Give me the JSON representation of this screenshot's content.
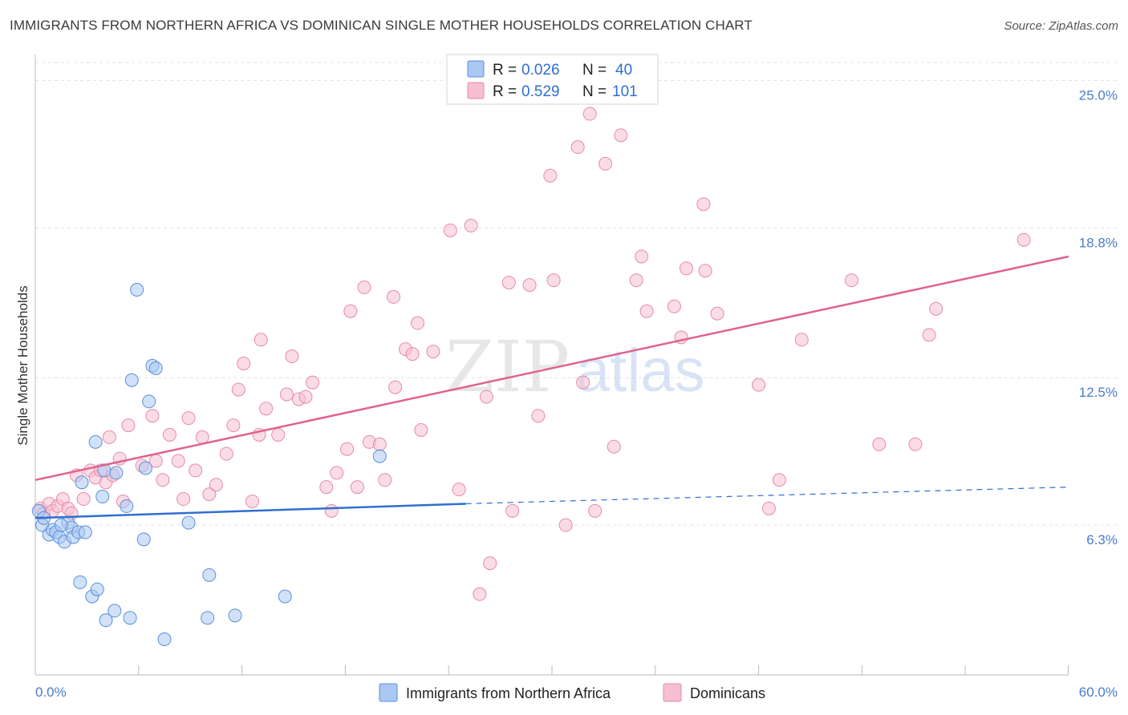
{
  "title": "IMMIGRANTS FROM NORTHERN AFRICA VS DOMINICAN SINGLE MOTHER HOUSEHOLDS CORRELATION CHART",
  "source": "Source: ZipAtlas.com",
  "watermark": {
    "zip": "ZIP",
    "atlas": "atlas"
  },
  "colors": {
    "blue_fill": "#a9c8f2",
    "blue_stroke": "#5b8fd8",
    "blue_line": "#2f6fd0",
    "pink_fill": "#f6bfd2",
    "pink_stroke": "#e88aa8",
    "pink_line": "#e0628d",
    "tick_label": "#4a7cc9"
  },
  "legend": {
    "rows": [
      {
        "r_label": "R = ",
        "r_value": "0.026",
        "n_label": "N = ",
        "n_value": "40",
        "series": "blue"
      },
      {
        "r_label": "R = ",
        "r_value": "0.529",
        "n_label": "N = ",
        "n_value": "101",
        "series": "pink"
      }
    ]
  },
  "chart_data": {
    "type": "scatter",
    "title": "IMMIGRANTS FROM NORTHERN AFRICA VS DOMINICAN SINGLE MOTHER HOUSEHOLDS CORRELATION CHART",
    "xlabel": "",
    "ylabel": "Single Mother Households",
    "xlim": [
      0,
      60
    ],
    "ylim": [
      0,
      26.5
    ],
    "x_tick_labels": [
      "0.0%",
      "60.0%"
    ],
    "y_ticks": [
      6.3,
      12.5,
      18.8,
      25.0
    ],
    "y_tick_labels": [
      "6.3%",
      "12.5%",
      "18.8%",
      "25.0%"
    ],
    "legend_position": "bottom",
    "series": [
      {
        "name": "Immigrants from Northern Africa",
        "color": "blue",
        "trend": {
          "x": [
            0,
            25
          ],
          "y": [
            6.6,
            7.2
          ],
          "dashed_to": [
            60,
            7.9
          ]
        },
        "points": [
          [
            0.2,
            6.9
          ],
          [
            0.4,
            6.3
          ],
          [
            0.5,
            6.6
          ],
          [
            0.8,
            5.9
          ],
          [
            1.0,
            6.1
          ],
          [
            1.2,
            6.0
          ],
          [
            1.4,
            5.8
          ],
          [
            1.7,
            5.6
          ],
          [
            1.9,
            6.4
          ],
          [
            2.1,
            6.2
          ],
          [
            2.2,
            5.8
          ],
          [
            2.5,
            6.0
          ],
          [
            2.6,
            3.9
          ],
          [
            3.3,
            3.3
          ],
          [
            3.5,
            9.8
          ],
          [
            2.7,
            8.1
          ],
          [
            3.9,
            7.5
          ],
          [
            4.1,
            2.3
          ],
          [
            4.6,
            2.7
          ],
          [
            4.7,
            8.5
          ],
          [
            5.3,
            7.1
          ],
          [
            5.5,
            2.4
          ],
          [
            5.6,
            12.4
          ],
          [
            5.9,
            16.2
          ],
          [
            6.3,
            5.7
          ],
          [
            6.4,
            8.7
          ],
          [
            6.6,
            11.5
          ],
          [
            6.8,
            13.0
          ],
          [
            7.0,
            12.9
          ],
          [
            7.5,
            1.5
          ],
          [
            8.9,
            6.4
          ],
          [
            10.1,
            4.2
          ],
          [
            10.0,
            2.4
          ],
          [
            11.6,
            2.5
          ],
          [
            14.5,
            3.3
          ],
          [
            20.0,
            9.2
          ],
          [
            3.6,
            3.6
          ],
          [
            4.0,
            8.6
          ],
          [
            1.5,
            6.3
          ],
          [
            2.9,
            6.0
          ]
        ]
      },
      {
        "name": "Dominicans",
        "color": "pink",
        "trend": {
          "x": [
            0,
            60
          ],
          "y": [
            8.2,
            17.6
          ]
        },
        "points": [
          [
            0.3,
            7.0
          ],
          [
            0.5,
            6.8
          ],
          [
            0.8,
            7.2
          ],
          [
            1.0,
            6.9
          ],
          [
            1.3,
            7.1
          ],
          [
            1.6,
            7.4
          ],
          [
            1.9,
            7.0
          ],
          [
            2.1,
            6.8
          ],
          [
            2.4,
            8.4
          ],
          [
            2.8,
            7.4
          ],
          [
            3.2,
            8.6
          ],
          [
            3.5,
            8.3
          ],
          [
            3.8,
            8.6
          ],
          [
            4.1,
            8.1
          ],
          [
            4.3,
            10.0
          ],
          [
            4.5,
            8.4
          ],
          [
            4.9,
            9.1
          ],
          [
            5.1,
            7.3
          ],
          [
            5.4,
            10.5
          ],
          [
            6.2,
            8.8
          ],
          [
            6.8,
            10.9
          ],
          [
            7.0,
            9.0
          ],
          [
            7.4,
            8.2
          ],
          [
            7.8,
            10.1
          ],
          [
            8.3,
            9.0
          ],
          [
            8.6,
            7.4
          ],
          [
            8.9,
            10.8
          ],
          [
            9.3,
            8.6
          ],
          [
            9.7,
            10.0
          ],
          [
            10.1,
            7.6
          ],
          [
            10.5,
            8.0
          ],
          [
            11.1,
            9.3
          ],
          [
            11.5,
            10.5
          ],
          [
            11.8,
            12.0
          ],
          [
            12.1,
            13.1
          ],
          [
            12.6,
            7.3
          ],
          [
            13.1,
            14.1
          ],
          [
            13.0,
            10.1
          ],
          [
            13.4,
            11.2
          ],
          [
            14.1,
            10.1
          ],
          [
            14.6,
            11.8
          ],
          [
            14.9,
            13.4
          ],
          [
            15.3,
            11.6
          ],
          [
            15.7,
            11.7
          ],
          [
            16.1,
            12.3
          ],
          [
            16.9,
            7.9
          ],
          [
            17.2,
            6.9
          ],
          [
            17.5,
            8.5
          ],
          [
            18.1,
            9.5
          ],
          [
            18.3,
            15.3
          ],
          [
            18.7,
            7.9
          ],
          [
            19.1,
            16.3
          ],
          [
            19.4,
            9.8
          ],
          [
            20.0,
            9.7
          ],
          [
            20.3,
            8.2
          ],
          [
            20.8,
            15.9
          ],
          [
            20.9,
            12.1
          ],
          [
            21.5,
            13.7
          ],
          [
            21.9,
            13.5
          ],
          [
            22.2,
            14.8
          ],
          [
            22.4,
            10.3
          ],
          [
            23.1,
            13.6
          ],
          [
            24.1,
            18.7
          ],
          [
            24.6,
            7.8
          ],
          [
            25.3,
            18.9
          ],
          [
            25.8,
            3.4
          ],
          [
            26.2,
            11.7
          ],
          [
            26.4,
            4.7
          ],
          [
            27.5,
            16.5
          ],
          [
            27.7,
            6.9
          ],
          [
            28.7,
            16.4
          ],
          [
            29.2,
            10.9
          ],
          [
            29.9,
            21.0
          ],
          [
            30.1,
            16.6
          ],
          [
            30.8,
            6.3
          ],
          [
            31.5,
            22.2
          ],
          [
            31.8,
            12.3
          ],
          [
            32.2,
            23.6
          ],
          [
            32.5,
            6.9
          ],
          [
            33.1,
            21.5
          ],
          [
            33.6,
            9.6
          ],
          [
            34.0,
            22.7
          ],
          [
            34.9,
            16.6
          ],
          [
            35.2,
            17.6
          ],
          [
            35.5,
            15.3
          ],
          [
            37.1,
            15.5
          ],
          [
            37.5,
            14.2
          ],
          [
            37.8,
            17.1
          ],
          [
            38.8,
            19.8
          ],
          [
            38.9,
            17.0
          ],
          [
            39.6,
            15.2
          ],
          [
            42.0,
            12.2
          ],
          [
            42.6,
            7.0
          ],
          [
            43.2,
            8.2
          ],
          [
            44.5,
            14.1
          ],
          [
            47.4,
            16.6
          ],
          [
            49.0,
            9.7
          ],
          [
            51.1,
            9.7
          ],
          [
            51.9,
            14.3
          ],
          [
            52.3,
            15.4
          ],
          [
            57.4,
            18.3
          ]
        ]
      }
    ]
  },
  "bottom_legend": [
    {
      "label": "Immigrants from Northern Africa",
      "series": "blue"
    },
    {
      "label": "Dominicans",
      "series": "pink"
    }
  ]
}
